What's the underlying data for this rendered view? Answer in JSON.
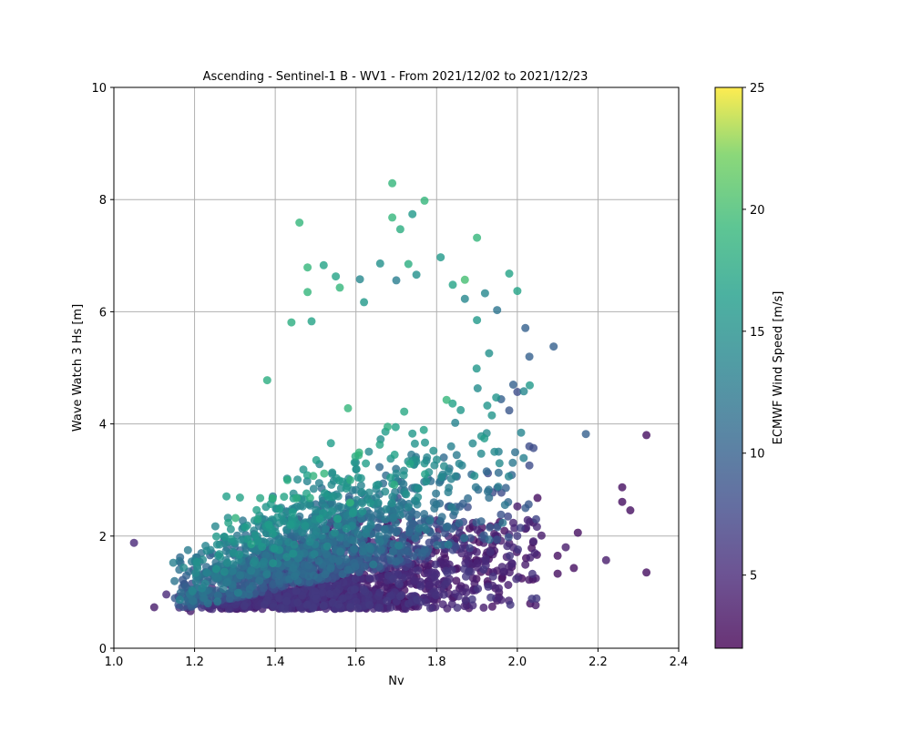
{
  "chart_data": {
    "type": "scatter",
    "title": "Ascending - Sentinel-1 B - WV1 - From 2021/12/02 to 2021/12/23",
    "xlabel": "Nv",
    "ylabel": "Wave Watch 3 Hs [m]",
    "xlim": [
      1.0,
      2.4
    ],
    "ylim": [
      0,
      10
    ],
    "xticks": [
      "1.0",
      "1.2",
      "1.4",
      "1.6",
      "1.8",
      "2.0",
      "2.2",
      "2.4"
    ],
    "yticks": [
      "0",
      "2",
      "4",
      "6",
      "8",
      "10"
    ],
    "grid": true,
    "colorbar": {
      "label": "ECMWF Wind Speed [m/s]",
      "colormap": "viridis",
      "range": [
        2,
        25
      ],
      "ticks": [
        "5",
        "10",
        "15",
        "20",
        "25"
      ]
    },
    "points_note_values": "x = Nv, y = Hs [m], c = wind speed [m/s]",
    "points": [
      [
        1.05,
        1.88,
        5
      ],
      [
        1.1,
        0.73,
        4
      ],
      [
        1.19,
        0.66,
        4
      ],
      [
        1.37,
        0.92,
        5
      ],
      [
        1.46,
        7.59,
        19
      ],
      [
        1.48,
        6.79,
        19
      ],
      [
        1.48,
        6.35,
        19
      ],
      [
        1.56,
        6.43,
        19
      ],
      [
        1.69,
        8.29,
        19
      ],
      [
        1.77,
        7.98,
        19
      ],
      [
        1.69,
        7.68,
        19
      ],
      [
        1.71,
        7.47,
        18
      ],
      [
        1.74,
        7.74,
        16
      ],
      [
        1.81,
        6.97,
        16
      ],
      [
        1.9,
        7.32,
        19
      ],
      [
        1.52,
        6.83,
        17
      ],
      [
        1.55,
        6.63,
        17
      ],
      [
        1.44,
        5.81,
        18
      ],
      [
        1.38,
        4.78,
        18
      ],
      [
        1.49,
        5.83,
        17
      ],
      [
        1.87,
        6.57,
        20
      ],
      [
        1.98,
        6.68,
        17
      ],
      [
        2.0,
        6.37,
        17
      ],
      [
        2.09,
        5.38,
        10
      ],
      [
        2.17,
        3.82,
        10
      ],
      [
        2.02,
        5.71,
        10
      ],
      [
        2.03,
        5.2,
        10
      ],
      [
        2.32,
        3.8,
        3
      ],
      [
        2.26,
        2.87,
        3
      ],
      [
        2.26,
        2.61,
        3
      ],
      [
        2.28,
        2.46,
        3
      ],
      [
        2.32,
        1.35,
        3
      ],
      [
        2.22,
        1.57,
        4
      ],
      [
        2.15,
        2.06,
        3
      ],
      [
        2.14,
        1.43,
        3
      ],
      [
        2.12,
        1.8,
        4
      ],
      [
        2.1,
        1.65,
        3
      ],
      [
        2.1,
        1.33,
        3
      ],
      [
        2.06,
        2.01,
        4
      ],
      [
        2.05,
        2.68,
        3
      ],
      [
        2.04,
        3.57,
        8
      ],
      [
        2.03,
        3.26,
        8
      ],
      [
        2.0,
        2.53,
        4
      ],
      [
        2.02,
        2.13,
        3
      ],
      [
        2.02,
        1.49,
        4
      ],
      [
        2.03,
        3.6,
        8
      ],
      [
        1.98,
        1.87,
        4
      ],
      [
        1.93,
        1.67,
        3
      ],
      [
        1.91,
        1.36,
        3
      ],
      [
        1.89,
        1.25,
        4
      ],
      [
        1.85,
        1.76,
        4
      ],
      [
        1.82,
        1.42,
        4
      ],
      [
        1.75,
        1.27,
        3
      ],
      [
        1.69,
        1.16,
        3
      ],
      [
        1.66,
        0.95,
        4
      ],
      [
        1.64,
        1.02,
        4
      ],
      [
        1.22,
        1.0,
        5
      ],
      [
        1.16,
        0.92,
        5
      ],
      [
        1.13,
        0.96,
        5
      ],
      [
        1.96,
        4.44,
        10
      ],
      [
        1.98,
        4.24,
        9
      ],
      [
        2.0,
        4.57,
        8
      ],
      [
        1.99,
        4.7,
        10
      ],
      [
        1.95,
        6.03,
        12
      ],
      [
        1.92,
        6.33,
        14
      ],
      [
        1.93,
        5.26,
        15
      ],
      [
        1.9,
        5.85,
        16
      ],
      [
        1.87,
        6.23,
        14
      ],
      [
        1.75,
        6.66,
        15
      ],
      [
        1.7,
        6.56,
        13
      ],
      [
        1.62,
        6.17,
        16
      ],
      [
        1.61,
        6.58,
        14
      ],
      [
        1.66,
        6.86,
        15
      ],
      [
        1.73,
        6.85,
        18
      ],
      [
        1.84,
        6.48,
        17
      ]
    ],
    "cloud_seed": 20211202
  }
}
